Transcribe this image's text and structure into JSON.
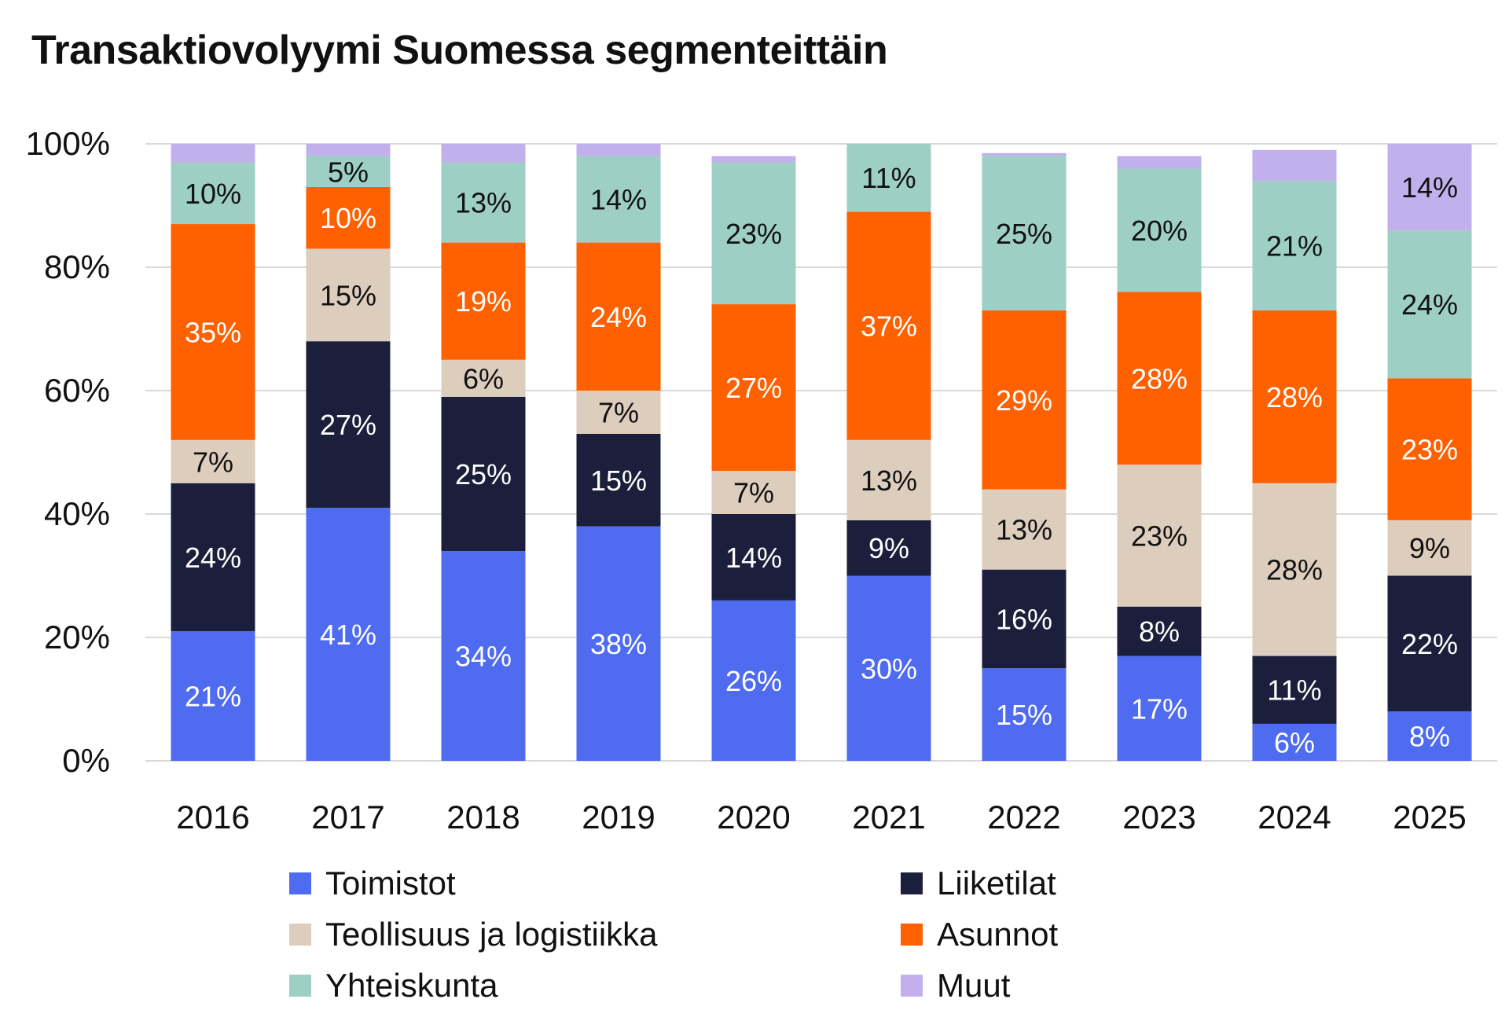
{
  "title": "Transaktiovolyymi Suomessa segmenteittäin",
  "chart_data": {
    "type": "bar",
    "stacked": true,
    "title": "Transaktiovolyymi Suomessa segmenteittäin",
    "categories": [
      "2016",
      "2017",
      "2018",
      "2019",
      "2020",
      "2021",
      "2022",
      "2023",
      "2024",
      "2025"
    ],
    "yticks": [
      "0%",
      "20%",
      "40%",
      "60%",
      "80%",
      "100%"
    ],
    "ylim": [
      0,
      100
    ],
    "series": [
      {
        "name": "Toimistot",
        "color": "#4F6BF0",
        "label_color": "#ffffff",
        "values": [
          21,
          41,
          34,
          38,
          26,
          30,
          15,
          17,
          6,
          8
        ],
        "labels": [
          "21%",
          "41%",
          "34%",
          "38%",
          "26%",
          "30%",
          "15%",
          "17%",
          "6%",
          "8%"
        ]
      },
      {
        "name": "Liiketilat",
        "color": "#1B1F3B",
        "label_color": "#ffffff",
        "values": [
          24,
          27,
          25,
          15,
          14,
          9,
          16,
          8,
          11,
          22
        ],
        "labels": [
          "24%",
          "27%",
          "25%",
          "15%",
          "14%",
          "9%",
          "16%",
          "8%",
          "11%",
          "22%"
        ]
      },
      {
        "name": "Teollisuus ja logistiikka",
        "color": "#DDCDBD",
        "label_color": "#111111",
        "values": [
          7,
          15,
          6,
          7,
          7,
          13,
          13,
          23,
          28,
          9
        ],
        "labels": [
          "7%",
          "15%",
          "6%",
          "7%",
          "7%",
          "13%",
          "13%",
          "23%",
          "28%",
          "9%"
        ]
      },
      {
        "name": "Asunnot",
        "color": "#FF6000",
        "label_color": "#ffffff",
        "values": [
          35,
          10,
          19,
          24,
          27,
          37,
          29,
          28,
          28,
          23
        ],
        "labels": [
          "35%",
          "10%",
          "19%",
          "24%",
          "27%",
          "37%",
          "29%",
          "28%",
          "28%",
          "23%"
        ]
      },
      {
        "name": "Yhteiskunta",
        "color": "#9ECFC5",
        "label_color": "#111111",
        "values": [
          10,
          5,
          13,
          14,
          23,
          11,
          25,
          20,
          21,
          24
        ],
        "labels": [
          "10%",
          "5%",
          "13%",
          "14%",
          "23%",
          "11%",
          "25%",
          "20%",
          "21%",
          "24%"
        ]
      },
      {
        "name": "Muut",
        "color": "#C1B0EC",
        "label_color": "#111111",
        "values": [
          4,
          2,
          3,
          2,
          1,
          1,
          0.5,
          2,
          5,
          14
        ],
        "labels": [
          "",
          "",
          "",
          "",
          "",
          "",
          "",
          "",
          "",
          "14%"
        ]
      }
    ],
    "legend": {
      "position": "bottom",
      "items": [
        "Toimistot",
        "Liiketilat",
        "Teollisuus ja logistiikka",
        "Asunnot",
        "Yhteiskunta",
        "Muut"
      ]
    }
  }
}
